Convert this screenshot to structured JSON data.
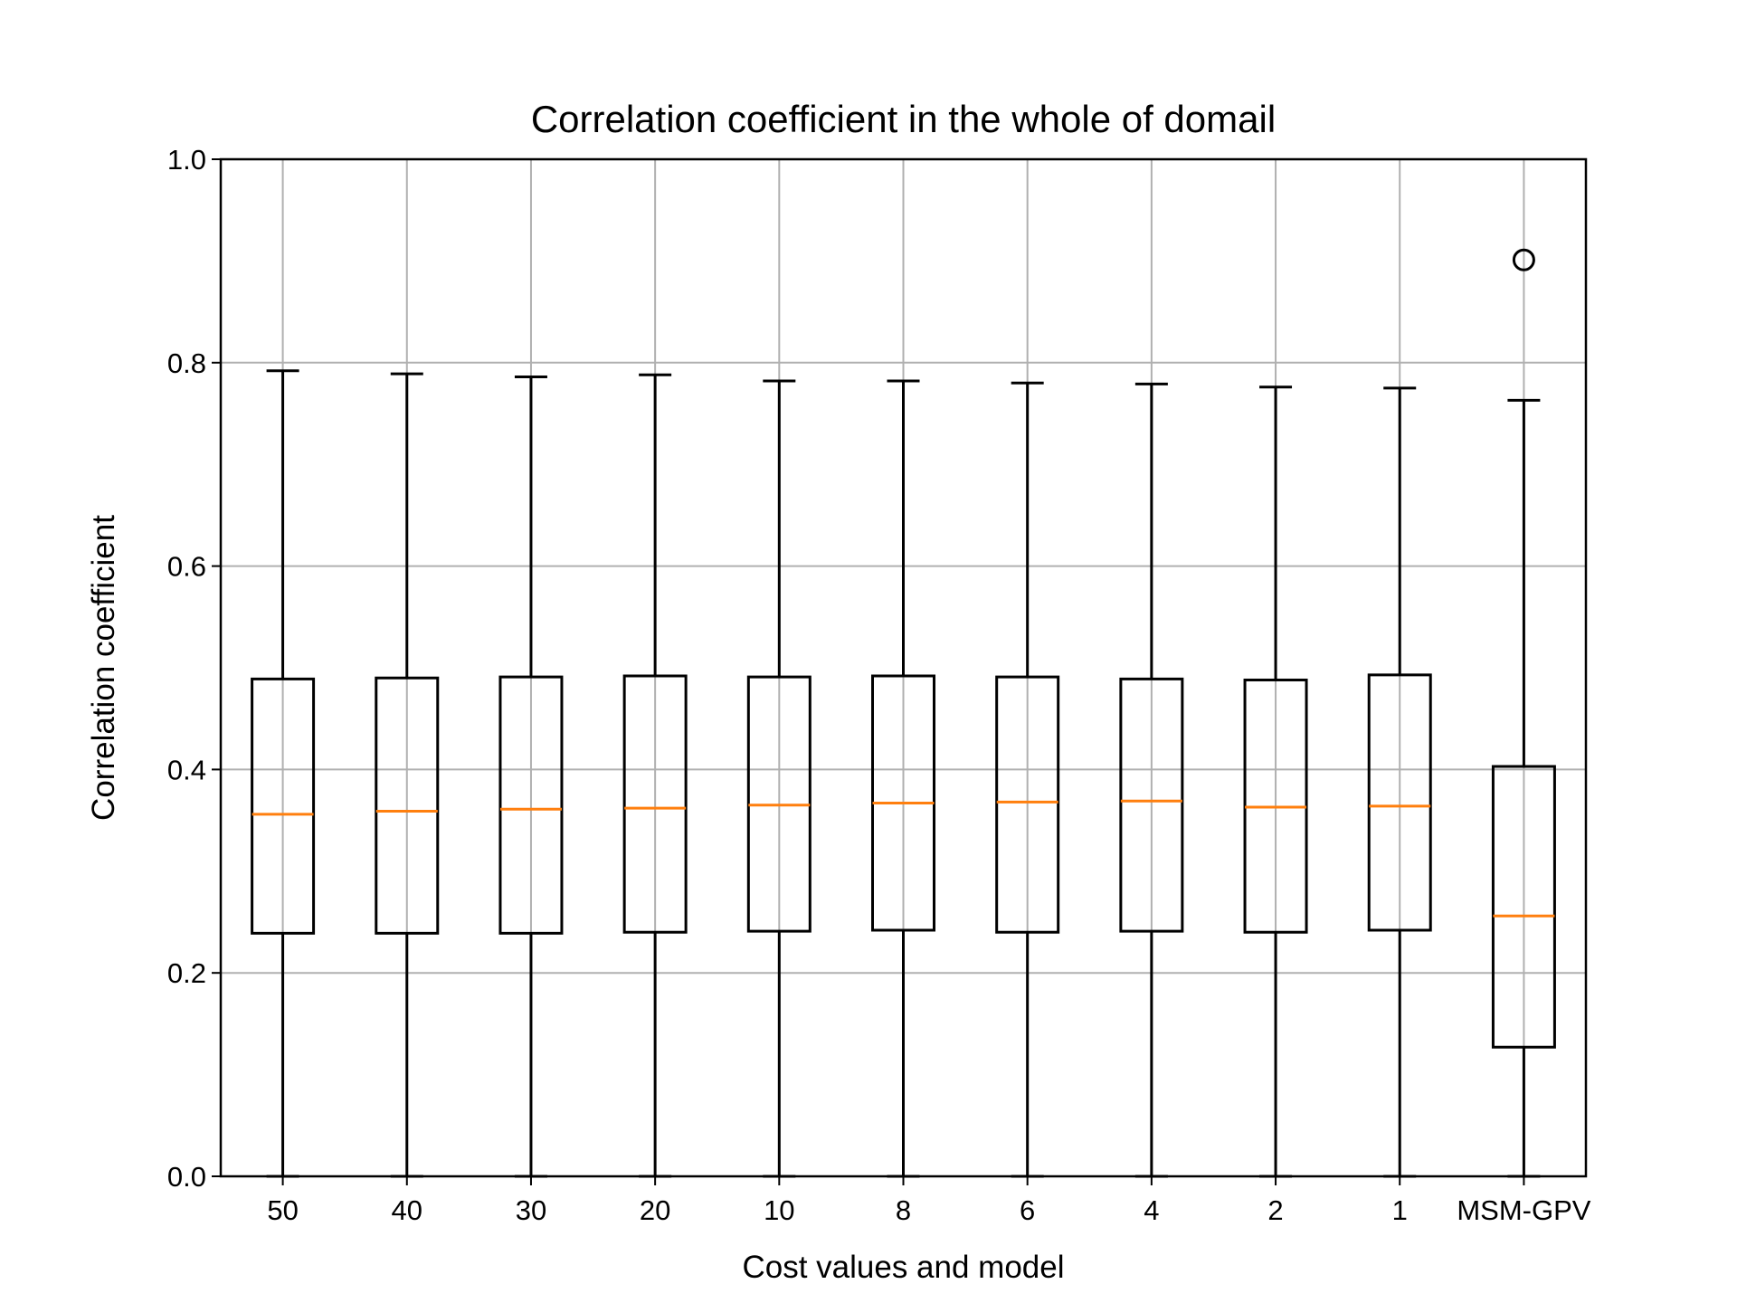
{
  "chart_data": {
    "type": "box",
    "title": "Correlation coefficient in the whole of domail",
    "xlabel": "Cost values and model",
    "ylabel": "Correlation coefficient",
    "ylim": [
      0.0,
      1.0
    ],
    "yticks": [
      "0.0",
      "0.2",
      "0.4",
      "0.6",
      "0.8",
      "1.0"
    ],
    "grid": true,
    "categories": [
      "50",
      "40",
      "30",
      "20",
      "10",
      "8",
      "6",
      "4",
      "2",
      "1",
      "MSM-GPV"
    ],
    "boxes": [
      {
        "whisker_low": 0.0,
        "q1": 0.239,
        "median": 0.356,
        "q3": 0.489,
        "whisker_high": 0.792,
        "outliers": []
      },
      {
        "whisker_low": 0.0,
        "q1": 0.239,
        "median": 0.359,
        "q3": 0.49,
        "whisker_high": 0.789,
        "outliers": []
      },
      {
        "whisker_low": 0.0,
        "q1": 0.239,
        "median": 0.361,
        "q3": 0.491,
        "whisker_high": 0.786,
        "outliers": []
      },
      {
        "whisker_low": 0.0,
        "q1": 0.24,
        "median": 0.362,
        "q3": 0.492,
        "whisker_high": 0.788,
        "outliers": []
      },
      {
        "whisker_low": 0.0,
        "q1": 0.241,
        "median": 0.365,
        "q3": 0.491,
        "whisker_high": 0.782,
        "outliers": []
      },
      {
        "whisker_low": 0.0,
        "q1": 0.242,
        "median": 0.367,
        "q3": 0.492,
        "whisker_high": 0.782,
        "outliers": []
      },
      {
        "whisker_low": 0.0,
        "q1": 0.24,
        "median": 0.368,
        "q3": 0.491,
        "whisker_high": 0.78,
        "outliers": []
      },
      {
        "whisker_low": 0.0,
        "q1": 0.241,
        "median": 0.369,
        "q3": 0.489,
        "whisker_high": 0.779,
        "outliers": []
      },
      {
        "whisker_low": 0.0,
        "q1": 0.24,
        "median": 0.363,
        "q3": 0.488,
        "whisker_high": 0.776,
        "outliers": []
      },
      {
        "whisker_low": 0.0,
        "q1": 0.242,
        "median": 0.364,
        "q3": 0.493,
        "whisker_high": 0.775,
        "outliers": []
      },
      {
        "whisker_low": 0.0,
        "q1": 0.127,
        "median": 0.256,
        "q3": 0.403,
        "whisker_high": 0.763,
        "outliers": [
          0.901
        ]
      }
    ],
    "colors": {
      "box": "#000000",
      "median": "#ff7f0e",
      "grid": "#b0b0b0",
      "background": "#ffffff"
    }
  }
}
